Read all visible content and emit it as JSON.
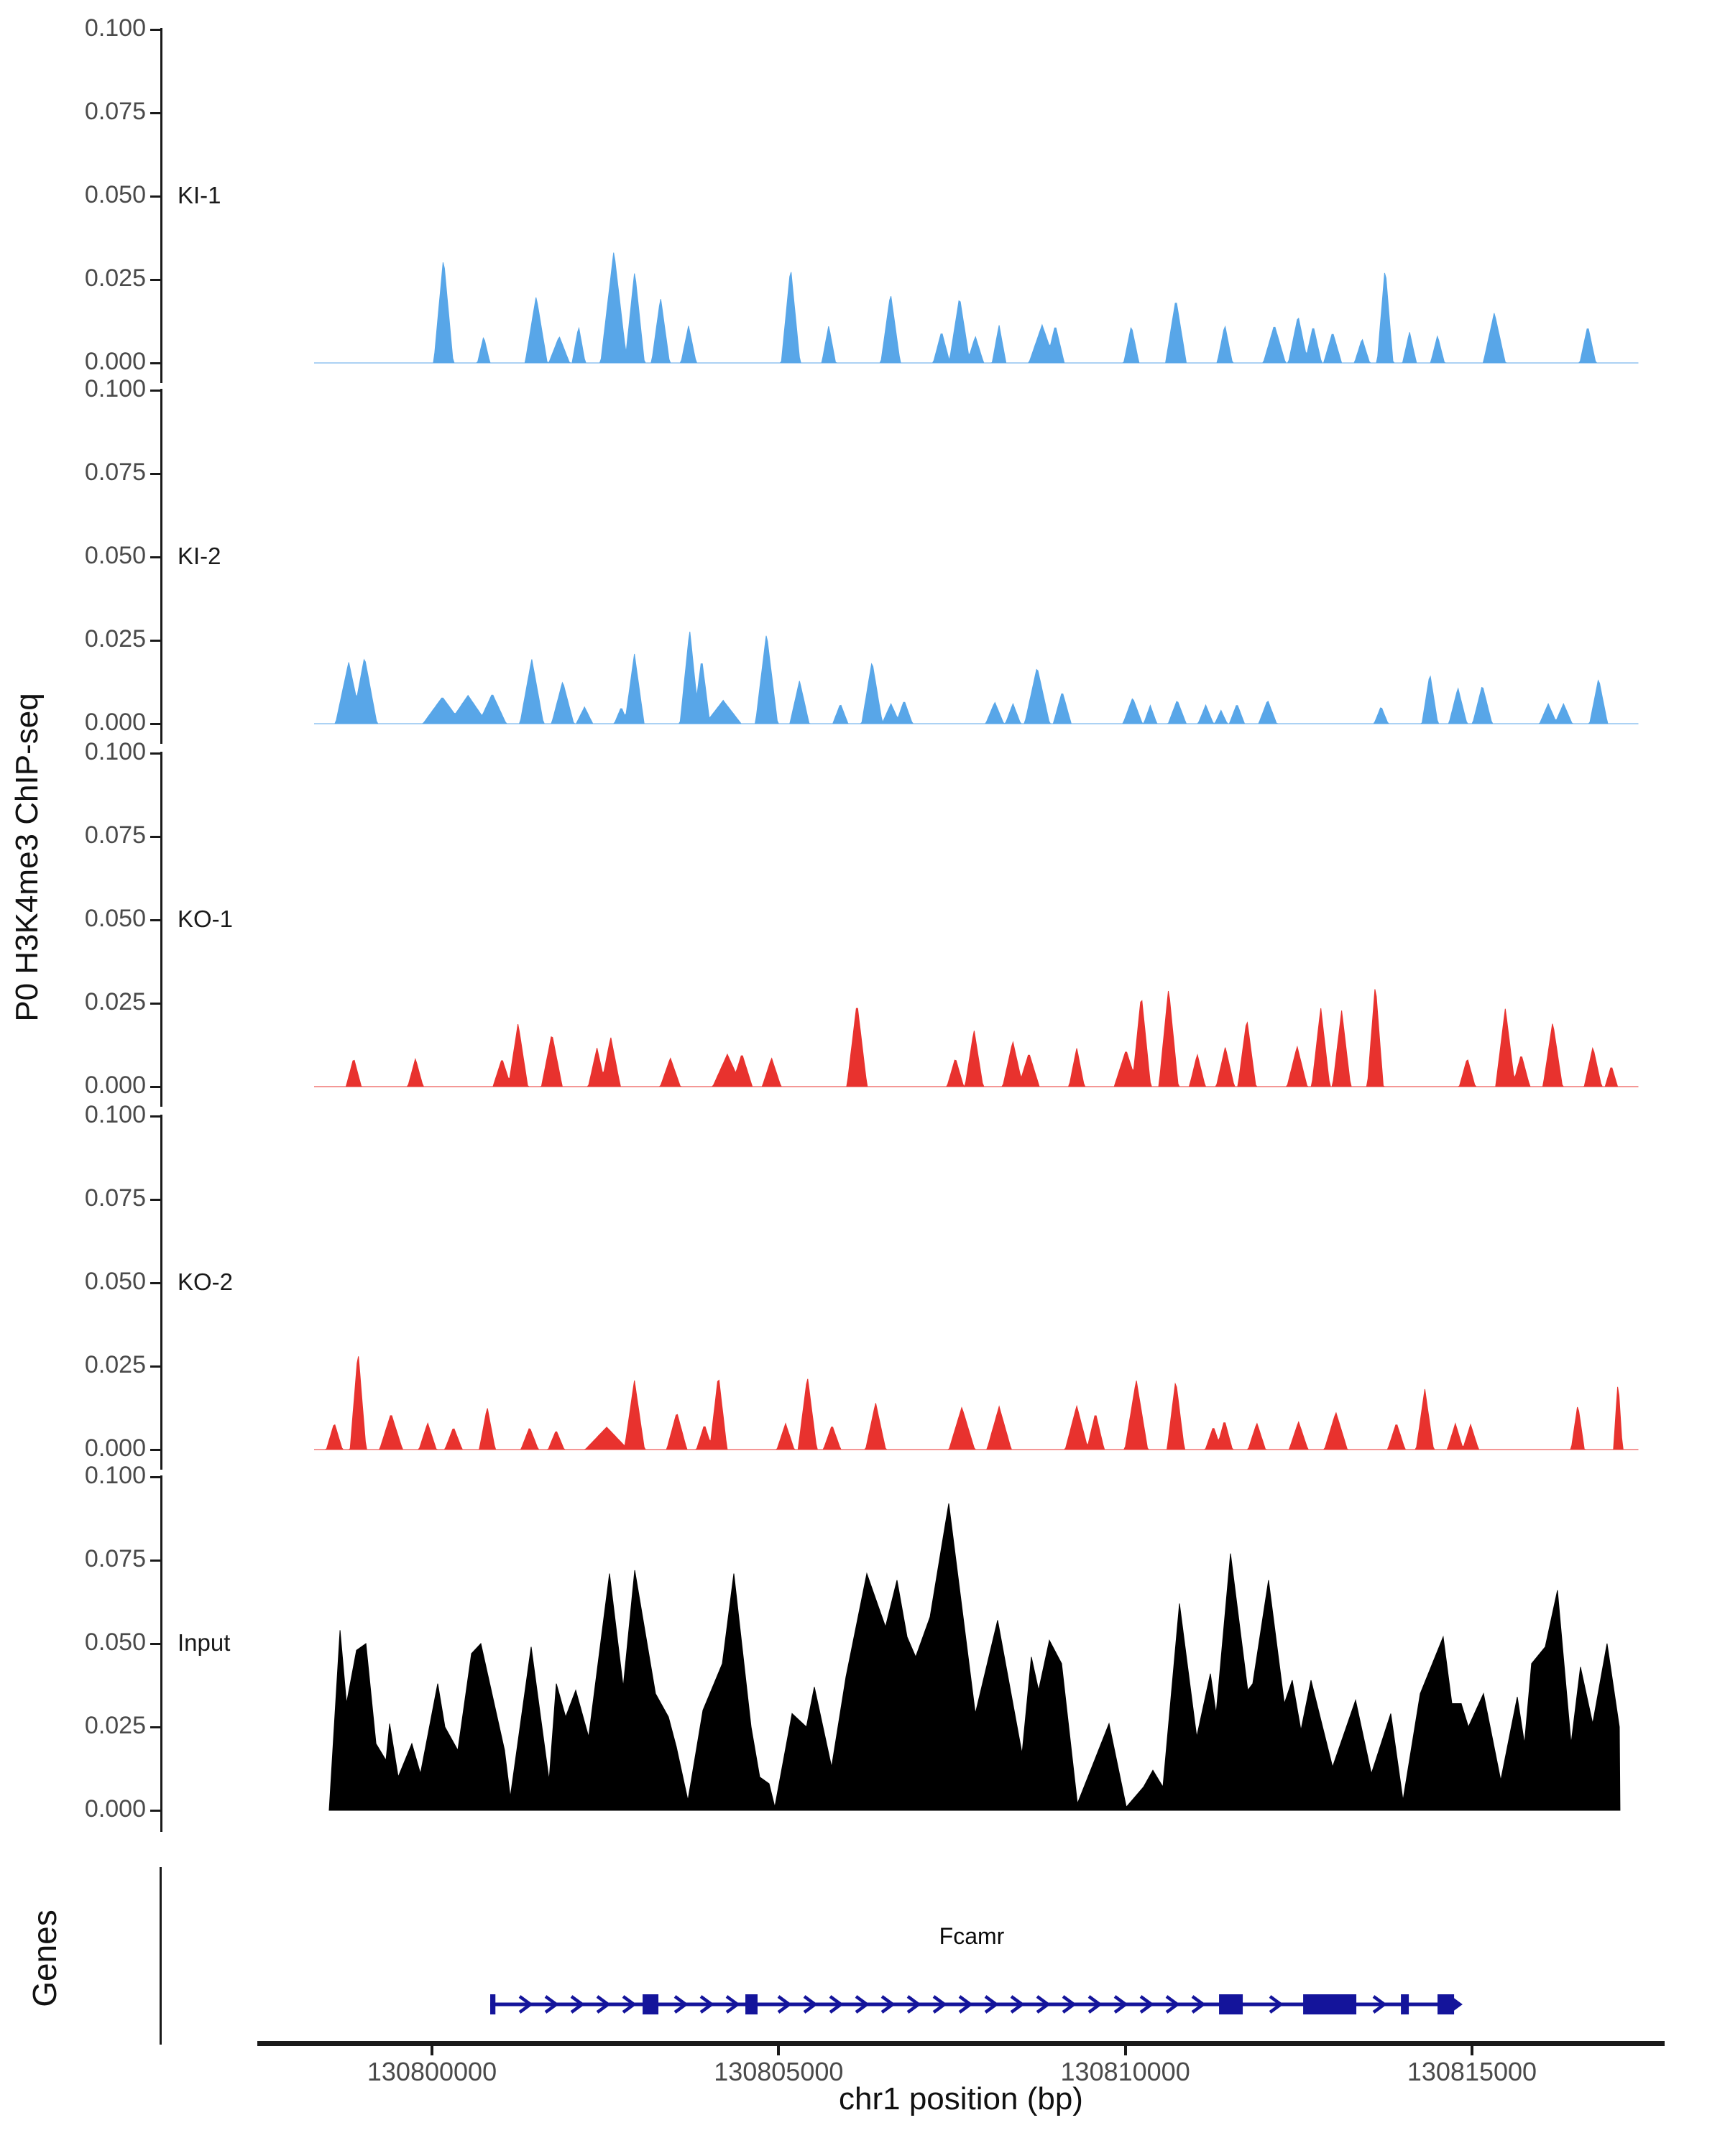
{
  "chart_data": {
    "type": "area",
    "xlabel": "chr1 position (bp)",
    "ylabel": "P0 H3K4me3 ChIP-seq",
    "xlim": [
      130797480,
      130817740
    ],
    "ylim": [
      0,
      0.1
    ],
    "grid": false,
    "ytick_values": [
      0.0,
      0.025,
      0.05,
      0.075,
      0.1
    ],
    "ytick_labels": [
      "0.000",
      "0.025",
      "0.050",
      "0.075",
      "0.100"
    ],
    "xtick_values": [
      130800000,
      130805000,
      130810000,
      130815000
    ],
    "xtick_labels": [
      "130800000",
      "130805000",
      "130810000",
      "130815000"
    ],
    "tracks": [
      {
        "label": "KI-1",
        "color": "#58a6e8",
        "kind": "peaks",
        "peaks": [
          [
            130800166,
            0.0315,
            140
          ],
          [
            130800746,
            0.008,
            90
          ],
          [
            130801503,
            0.02,
            160
          ],
          [
            130801835,
            0.008,
            150
          ],
          [
            130802115,
            0.011,
            95
          ],
          [
            130802623,
            0.0336,
            190
          ],
          [
            130802924,
            0.0276,
            140
          ],
          [
            130803297,
            0.0196,
            130
          ],
          [
            130803701,
            0.0112,
            110
          ],
          [
            130805173,
            0.0287,
            135
          ],
          [
            130805722,
            0.0112,
            100
          ],
          [
            130806614,
            0.0209,
            140
          ],
          [
            130807350,
            0.0095,
            120
          ],
          [
            130807609,
            0.0198,
            150
          ],
          [
            130807837,
            0.008,
            120
          ],
          [
            130808179,
            0.0114,
            100
          ],
          [
            130808800,
            0.0114,
            190
          ],
          [
            130808990,
            0.0114,
            130
          ],
          [
            130810087,
            0.0112,
            110
          ],
          [
            130810730,
            0.0192,
            150
          ],
          [
            130811435,
            0.0114,
            110
          ],
          [
            130812150,
            0.0114,
            160
          ],
          [
            130812492,
            0.0142,
            140
          ],
          [
            130812710,
            0.0112,
            120
          ],
          [
            130812990,
            0.0093,
            130
          ],
          [
            130813415,
            0.0073,
            110
          ],
          [
            130813747,
            0.0287,
            115
          ],
          [
            130814099,
            0.0093,
            100
          ],
          [
            130814503,
            0.0082,
            100
          ],
          [
            130815322,
            0.0151,
            160
          ],
          [
            130816670,
            0.0112,
            115
          ]
        ]
      },
      {
        "label": "KI-2",
        "color": "#58a6e8",
        "kind": "peaks",
        "peaks": [
          [
            130798799,
            0.0185,
            190
          ],
          [
            130799027,
            0.02,
            180
          ],
          [
            130800150,
            0.008,
            280
          ],
          [
            130800520,
            0.0085,
            280
          ],
          [
            130800870,
            0.009,
            200
          ],
          [
            130801439,
            0.0194,
            170
          ],
          [
            130801885,
            0.0127,
            160
          ],
          [
            130802200,
            0.005,
            120
          ],
          [
            130802730,
            0.005,
            100
          ],
          [
            130802920,
            0.0209,
            140
          ],
          [
            130803717,
            0.0282,
            140
          ],
          [
            130803890,
            0.0196,
            120
          ],
          [
            130804200,
            0.007,
            260
          ],
          [
            130804825,
            0.0272,
            160
          ],
          [
            130805301,
            0.0129,
            140
          ],
          [
            130805891,
            0.006,
            110
          ],
          [
            130806347,
            0.0188,
            150
          ],
          [
            130806620,
            0.006,
            130
          ],
          [
            130806810,
            0.007,
            120
          ],
          [
            130808117,
            0.0065,
            130
          ],
          [
            130808380,
            0.006,
            110
          ],
          [
            130808728,
            0.017,
            180
          ],
          [
            130809090,
            0.0097,
            130
          ],
          [
            130810106,
            0.0078,
            140
          ],
          [
            130810360,
            0.0055,
            95
          ],
          [
            130810748,
            0.0071,
            130
          ],
          [
            130811160,
            0.0056,
            110
          ],
          [
            130811380,
            0.004,
            90
          ],
          [
            130811610,
            0.006,
            110
          ],
          [
            130812053,
            0.0071,
            130
          ],
          [
            130813689,
            0.0052,
            100
          ],
          [
            130814393,
            0.0151,
            115
          ],
          [
            130814797,
            0.0108,
            130
          ],
          [
            130815149,
            0.0116,
            140
          ],
          [
            130816100,
            0.006,
            125
          ],
          [
            130816320,
            0.006,
            125
          ],
          [
            130816826,
            0.0136,
            130
          ]
        ]
      },
      {
        "label": "KO-1",
        "color": "#e8322e",
        "kind": "peaks",
        "peaks": [
          [
            130798871,
            0.0086,
            110
          ],
          [
            130799762,
            0.0084,
            110
          ],
          [
            130801010,
            0.0084,
            130
          ],
          [
            130801242,
            0.019,
            140
          ],
          [
            130801729,
            0.0159,
            150
          ],
          [
            130802380,
            0.0116,
            125
          ],
          [
            130802578,
            0.0149,
            140
          ],
          [
            130803438,
            0.0086,
            145
          ],
          [
            130804260,
            0.0097,
            210
          ],
          [
            130804470,
            0.0099,
            150
          ],
          [
            130804898,
            0.0086,
            135
          ],
          [
            130806130,
            0.0252,
            145
          ],
          [
            130807549,
            0.0086,
            120
          ],
          [
            130807818,
            0.017,
            130
          ],
          [
            130808377,
            0.0136,
            145
          ],
          [
            130808610,
            0.0101,
            150
          ],
          [
            130809299,
            0.0116,
            110
          ],
          [
            130810010,
            0.011,
            170
          ],
          [
            130810231,
            0.0276,
            135
          ],
          [
            130810624,
            0.0295,
            140
          ],
          [
            130811038,
            0.0097,
            115
          ],
          [
            130811442,
            0.0119,
            130
          ],
          [
            130811753,
            0.0203,
            130
          ],
          [
            130812478,
            0.0121,
            145
          ],
          [
            130812819,
            0.0237,
            130
          ],
          [
            130813120,
            0.0228,
            130
          ],
          [
            130813606,
            0.0308,
            115
          ],
          [
            130814932,
            0.0086,
            115
          ],
          [
            130815481,
            0.0235,
            140
          ],
          [
            130815710,
            0.0097,
            125
          ],
          [
            130816164,
            0.0194,
            140
          ],
          [
            130816744,
            0.0119,
            125
          ],
          [
            130817010,
            0.0063,
            90
          ]
        ]
      },
      {
        "label": "KO-2",
        "color": "#e8322e",
        "kind": "peaks",
        "peaks": [
          [
            130798592,
            0.008,
            115
          ],
          [
            130798934,
            0.0295,
            115
          ],
          [
            130799410,
            0.0108,
            165
          ],
          [
            130799938,
            0.008,
            125
          ],
          [
            130800311,
            0.0067,
            125
          ],
          [
            130800797,
            0.0127,
            115
          ],
          [
            130801408,
            0.0067,
            125
          ],
          [
            130801791,
            0.0058,
            115
          ],
          [
            130802520,
            0.0067,
            310
          ],
          [
            130802920,
            0.0207,
            145
          ],
          [
            130803531,
            0.0112,
            145
          ],
          [
            130803930,
            0.0075,
            115
          ],
          [
            130804131,
            0.0224,
            125
          ],
          [
            130805100,
            0.0078,
            125
          ],
          [
            130805415,
            0.022,
            135
          ],
          [
            130805770,
            0.0073,
            125
          ],
          [
            130806399,
            0.014,
            145
          ],
          [
            130807642,
            0.0127,
            185
          ],
          [
            130808180,
            0.0129,
            175
          ],
          [
            130809299,
            0.0131,
            165
          ],
          [
            130809570,
            0.011,
            125
          ],
          [
            130810158,
            0.0209,
            165
          ],
          [
            130810727,
            0.0209,
            125
          ],
          [
            130811270,
            0.0069,
            115
          ],
          [
            130811430,
            0.0088,
            115
          ],
          [
            130811897,
            0.008,
            125
          ],
          [
            130812498,
            0.0084,
            135
          ],
          [
            130813037,
            0.0112,
            165
          ],
          [
            130813910,
            0.008,
            125
          ],
          [
            130814320,
            0.0181,
            125
          ],
          [
            130814760,
            0.0078,
            115
          ],
          [
            130814980,
            0.0075,
            115
          ],
          [
            130816526,
            0.0136,
            95
          ],
          [
            130817106,
            0.0207,
            65
          ]
        ]
      },
      {
        "label": "Input",
        "color": "#000000",
        "kind": "profile",
        "points": [
          [
            130798518,
            0.0
          ],
          [
            130798674,
            0.054
          ],
          [
            130798767,
            0.032
          ],
          [
            130798912,
            0.048
          ],
          [
            130799047,
            0.05
          ],
          [
            130799192,
            0.02
          ],
          [
            130799337,
            0.015
          ],
          [
            130799389,
            0.026
          ],
          [
            130799513,
            0.01
          ],
          [
            130799710,
            0.02
          ],
          [
            130799834,
            0.011
          ],
          [
            130800083,
            0.038
          ],
          [
            130800187,
            0.025
          ],
          [
            130800373,
            0.018
          ],
          [
            130800570,
            0.047
          ],
          [
            130800705,
            0.05
          ],
          [
            130801047,
            0.018
          ],
          [
            130801130,
            0.004
          ],
          [
            130801431,
            0.049
          ],
          [
            130801690,
            0.009
          ],
          [
            130801793,
            0.038
          ],
          [
            130801928,
            0.028
          ],
          [
            130802073,
            0.036
          ],
          [
            130802260,
            0.022
          ],
          [
            130802561,
            0.071
          ],
          [
            130802758,
            0.037
          ],
          [
            130802924,
            0.072
          ],
          [
            130803224,
            0.035
          ],
          [
            130803411,
            0.028
          ],
          [
            130803525,
            0.019
          ],
          [
            130803691,
            0.003
          ],
          [
            130803908,
            0.03
          ],
          [
            130804188,
            0.044
          ],
          [
            130804354,
            0.071
          ],
          [
            130804603,
            0.025
          ],
          [
            130804727,
            0.01
          ],
          [
            130804862,
            0.008
          ],
          [
            130804945,
            0.001
          ],
          [
            130805194,
            0.029
          ],
          [
            130805401,
            0.025
          ],
          [
            130805515,
            0.037
          ],
          [
            130805764,
            0.013
          ],
          [
            130805971,
            0.04
          ],
          [
            130806272,
            0.071
          ],
          [
            130806541,
            0.055
          ],
          [
            130806707,
            0.069
          ],
          [
            130806852,
            0.052
          ],
          [
            130806977,
            0.046
          ],
          [
            130807184,
            0.058
          ],
          [
            130807453,
            0.092
          ],
          [
            130807837,
            0.029
          ],
          [
            130808158,
            0.057
          ],
          [
            130808511,
            0.017
          ],
          [
            130808645,
            0.046
          ],
          [
            130808749,
            0.036
          ],
          [
            130808905,
            0.051
          ],
          [
            130809081,
            0.044
          ],
          [
            130809309,
            0.002
          ],
          [
            130809765,
            0.026
          ],
          [
            130810014,
            0.001
          ],
          [
            130810263,
            0.007
          ],
          [
            130810398,
            0.012
          ],
          [
            130810543,
            0.007
          ],
          [
            130810781,
            0.062
          ],
          [
            130811030,
            0.022
          ],
          [
            130811227,
            0.041
          ],
          [
            130811310,
            0.029
          ],
          [
            130811517,
            0.077
          ],
          [
            130811766,
            0.036
          ],
          [
            130811838,
            0.038
          ],
          [
            130812066,
            0.069
          ],
          [
            130812294,
            0.032
          ],
          [
            130812408,
            0.039
          ],
          [
            130812533,
            0.024
          ],
          [
            130812678,
            0.039
          ],
          [
            130812989,
            0.013
          ],
          [
            130813321,
            0.033
          ],
          [
            130813549,
            0.011
          ],
          [
            130813829,
            0.029
          ],
          [
            130814005,
            0.003
          ],
          [
            130814254,
            0.035
          ],
          [
            130814585,
            0.052
          ],
          [
            130814710,
            0.032
          ],
          [
            130814845,
            0.032
          ],
          [
            130814948,
            0.025
          ],
          [
            130815166,
            0.035
          ],
          [
            130815415,
            0.009
          ],
          [
            130815653,
            0.034
          ],
          [
            130815757,
            0.02
          ],
          [
            130815860,
            0.044
          ],
          [
            130816057,
            0.049
          ],
          [
            130816233,
            0.066
          ],
          [
            130816430,
            0.02
          ],
          [
            130816565,
            0.043
          ],
          [
            130816741,
            0.026
          ],
          [
            130816948,
            0.05
          ],
          [
            130817125,
            0.025
          ],
          [
            130817135,
            0.0
          ]
        ]
      }
    ],
    "genes": {
      "panel_label": "Genes",
      "gene": {
        "name": "Fcamr",
        "strand": "+",
        "color": "#14149b",
        "start": 130800840,
        "end": 130814790,
        "label_bp": 130807800,
        "exons": [
          [
            130800840,
            130800915
          ],
          [
            130803038,
            130803266
          ],
          [
            130804520,
            130804696
          ],
          [
            130811352,
            130811694
          ],
          [
            130812565,
            130813332
          ],
          [
            130813975,
            130814089
          ],
          [
            130814503,
            130814742
          ]
        ]
      }
    }
  }
}
